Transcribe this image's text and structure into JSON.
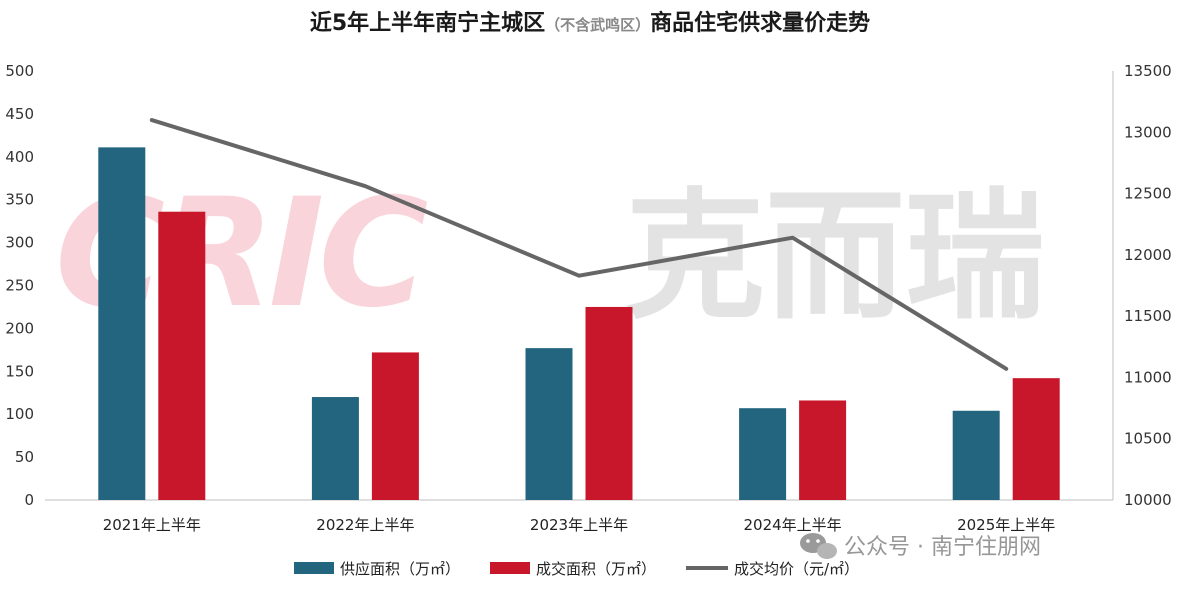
{
  "title": {
    "main_left": "近5年上半年南宁主城区",
    "sub": "（不含武鸣区）",
    "main_right": "商品住宅供求量价走势"
  },
  "watermark": {
    "logo_text": "CRIC",
    "brand_text": "克而瑞",
    "footer_text": "公众号 · 南宁住朋网"
  },
  "colors": {
    "supply": "#23647f",
    "deal": "#c8172b",
    "price": "#666666",
    "axis": "#bfbfbf"
  },
  "chart_data": {
    "type": "bar",
    "categories": [
      "2021年上半年",
      "2022年上半年",
      "2023年上半年",
      "2024年上半年",
      "2025年上半年"
    ],
    "series": [
      {
        "name": "供应面积（万㎡）",
        "type": "bar",
        "axis": "left",
        "values": [
          411,
          120,
          177,
          107,
          104
        ]
      },
      {
        "name": "成交面积（万㎡）",
        "type": "bar",
        "axis": "left",
        "values": [
          336,
          172,
          225,
          116,
          142
        ]
      },
      {
        "name": "成交均价（元/㎡）",
        "type": "line",
        "axis": "right",
        "values": [
          13100,
          12560,
          11830,
          12140,
          11070
        ]
      }
    ],
    "y_left": {
      "min": 0,
      "max": 500,
      "step": 50,
      "ticks": [
        "0",
        "50",
        "100",
        "150",
        "200",
        "250",
        "300",
        "350",
        "400",
        "450",
        "500"
      ]
    },
    "y_right": {
      "min": 10000,
      "max": 13500,
      "step": 500,
      "ticks": [
        "10000",
        "10500",
        "11000",
        "11500",
        "12000",
        "12500",
        "13000",
        "13500"
      ]
    },
    "grid": false,
    "legend_position": "bottom"
  }
}
